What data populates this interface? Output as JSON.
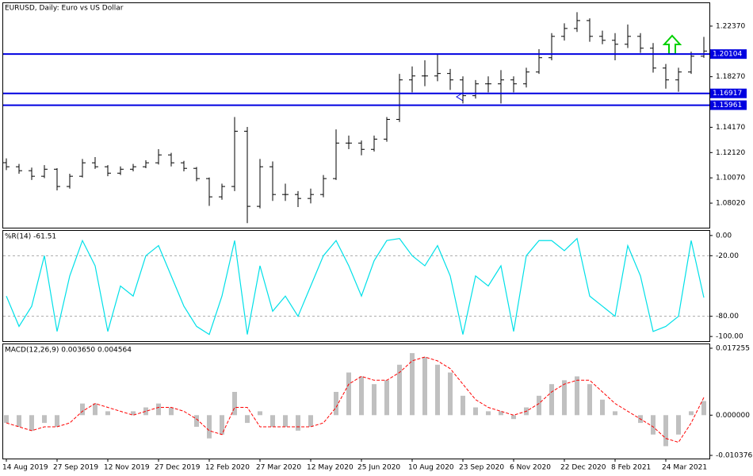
{
  "chart_data": [
    {
      "type": "ohlc",
      "title": "EURUSD, Daily:  Euro vs US Dollar",
      "categories": [
        "14 Aug 2019",
        null,
        null,
        null,
        "27 Sep 2019",
        null,
        null,
        null,
        "12 Nov 2019",
        null,
        null,
        null,
        "27 Dec 2019",
        null,
        null,
        null,
        "12 Feb 2020",
        null,
        null,
        null,
        "27 Mar 2020",
        null,
        null,
        null,
        "12 May 2020",
        null,
        null,
        null,
        "25 Jun 2020",
        null,
        null,
        null,
        "10 Aug 2020",
        null,
        null,
        null,
        "23 Sep 2020",
        null,
        null,
        null,
        "6 Nov 2020",
        null,
        null,
        null,
        "22 Dec 2020",
        null,
        null,
        null,
        "8 Feb 2021",
        null,
        null,
        null,
        "24 Mar 2021",
        null,
        null,
        null
      ],
      "open": [
        1.113,
        1.1097,
        1.1065,
        1.102,
        1.1077,
        1.0937,
        1.102,
        1.1129,
        1.1097,
        1.1045,
        1.1077,
        1.1097,
        1.1129,
        1.1193,
        1.1129,
        1.1084,
        1.1001,
        1.0853,
        1.0937,
        1.1385,
        1.0776,
        1.1097,
        1.0872,
        1.0872,
        1.084,
        1.0872,
        1.1001,
        1.1289,
        1.1289,
        1.1238,
        1.1321,
        1.1481,
        1.1801,
        1.1833,
        1.1833,
        1.1853,
        1.1801,
        1.1673,
        1.1769,
        1.1769,
        1.1801,
        1.1769,
        1.1865,
        1.1981,
        1.2154,
        1.2218,
        1.2282,
        1.2154,
        1.2122,
        1.209,
        1.2154,
        1.2058,
        1.1897,
        1.1801,
        1.1865,
        1.1993
      ],
      "high": [
        1.1165,
        1.112,
        1.109,
        1.111,
        1.1085,
        1.104,
        1.116,
        1.1175,
        1.111,
        1.11,
        1.112,
        1.115,
        1.124,
        1.121,
        1.1145,
        1.1095,
        1.101,
        1.096,
        1.15,
        1.142,
        1.116,
        1.114,
        1.096,
        1.09,
        1.092,
        1.103,
        1.14,
        1.135,
        1.131,
        1.135,
        1.15,
        1.185,
        1.191,
        1.196,
        1.201,
        1.189,
        1.183,
        1.18,
        1.183,
        1.188,
        1.183,
        1.19,
        1.205,
        1.218,
        1.226,
        1.235,
        1.23,
        1.22,
        1.218,
        1.225,
        1.218,
        1.21,
        1.193,
        1.19,
        1.203,
        1.215
      ],
      "low": [
        1.107,
        1.104,
        1.099,
        1.1005,
        1.0905,
        1.092,
        1.101,
        1.108,
        1.102,
        1.103,
        1.106,
        1.1085,
        1.1115,
        1.11,
        1.106,
        1.098,
        1.078,
        1.083,
        1.09,
        1.064,
        1.076,
        1.082,
        1.082,
        1.077,
        1.08,
        1.085,
        1.099,
        1.124,
        1.119,
        1.122,
        1.13,
        1.146,
        1.17,
        1.175,
        1.179,
        1.172,
        1.161,
        1.165,
        1.17,
        1.161,
        1.17,
        1.174,
        1.185,
        1.196,
        1.212,
        1.219,
        1.211,
        1.209,
        1.196,
        1.206,
        1.202,
        1.186,
        1.173,
        1.1705,
        1.185,
        1.198
      ],
      "close": [
        1.1097,
        1.1065,
        1.102,
        1.1077,
        1.0937,
        1.102,
        1.1129,
        1.1097,
        1.1045,
        1.1077,
        1.1097,
        1.1129,
        1.1193,
        1.1129,
        1.1084,
        1.1001,
        1.0853,
        1.0937,
        1.1385,
        1.0776,
        1.1097,
        1.0872,
        1.0872,
        1.084,
        1.0872,
        1.1001,
        1.1289,
        1.1289,
        1.1238,
        1.1321,
        1.1481,
        1.1801,
        1.1833,
        1.1833,
        1.1853,
        1.1801,
        1.1673,
        1.1769,
        1.1769,
        1.1801,
        1.1769,
        1.1865,
        1.1981,
        1.2154,
        1.2218,
        1.2282,
        1.2154,
        1.2122,
        1.209,
        1.2154,
        1.2058,
        1.1897,
        1.1801,
        1.1865,
        1.1993,
        1.2035
      ],
      "color": "#000000",
      "ylim": [
        1.0603,
        1.2423
      ],
      "yticks": [
        {
          "value": 1.0802,
          "label": "1.08020"
        },
        {
          "value": 1.1007,
          "label": "1.10070"
        },
        {
          "value": 1.1212,
          "label": "1.12120"
        },
        {
          "value": 1.1417,
          "label": "1.14170"
        },
        {
          "value": 1.1827,
          "label": "1.18270"
        },
        {
          "value": 1.2237,
          "label": "1.22370"
        }
      ],
      "hlines": [
        1.20104,
        1.16917,
        1.15961
      ],
      "hline_color": "#0000e0"
    },
    {
      "type": "line",
      "title": "%R(14) -61.51",
      "values": [
        -60,
        -90,
        -70,
        -20,
        -95,
        -40,
        -5,
        -30,
        -95,
        -50,
        -60,
        -20,
        -10,
        -40,
        -70,
        -90,
        -98,
        -60,
        -5,
        -98,
        -30,
        -75,
        -60,
        -80,
        -50,
        -20,
        -5,
        -30,
        -60,
        -25,
        -5,
        -3,
        -20,
        -30,
        -10,
        -40,
        -98,
        -40,
        -50,
        -30,
        -95,
        -20,
        -5,
        -5,
        -15,
        -3,
        -60,
        -70,
        -80,
        -10,
        -40,
        -95,
        -90,
        -80,
        -5,
        -61.51
      ],
      "color": "#00e0e8",
      "ylim": [
        -104.6,
        4.6
      ],
      "yticks": [
        {
          "value": 0,
          "label": "0.00"
        },
        {
          "value": -20,
          "label": "-20.00"
        },
        {
          "value": -80,
          "label": "-80.00"
        },
        {
          "value": -100,
          "label": "-100.00"
        }
      ],
      "levels": [
        -20,
        -80
      ]
    },
    {
      "type": "macd",
      "title": "MACD(12,26,9) 0.003650 0.004564",
      "values": [
        -0.002,
        -0.003,
        -0.004,
        -0.002,
        -0.003,
        0.0,
        0.003,
        0.003,
        0.001,
        0.0,
        0.001,
        0.002,
        0.003,
        0.002,
        0.0,
        -0.003,
        -0.006,
        -0.005,
        0.006,
        -0.002,
        0.001,
        -0.003,
        -0.003,
        -0.004,
        -0.003,
        0.0,
        0.006,
        0.011,
        0.01,
        0.008,
        0.009,
        0.013,
        0.016,
        0.015,
        0.013,
        0.011,
        0.005,
        0.002,
        0.001,
        0.001,
        -0.001,
        0.002,
        0.005,
        0.008,
        0.009,
        0.01,
        0.008,
        0.004,
        0.001,
        0.0,
        -0.002,
        -0.005,
        -0.008,
        -0.005,
        0.001,
        0.00365
      ],
      "signal_values": [
        -0.002,
        -0.003,
        -0.004,
        -0.003,
        -0.003,
        -0.002,
        0.001,
        0.003,
        0.002,
        0.001,
        0.0,
        0.001,
        0.002,
        0.002,
        0.001,
        -0.001,
        -0.004,
        -0.005,
        0.002,
        0.002,
        -0.003,
        -0.003,
        -0.003,
        -0.003,
        -0.003,
        -0.002,
        0.002,
        0.008,
        0.01,
        0.009,
        0.009,
        0.011,
        0.014,
        0.015,
        0.014,
        0.012,
        0.008,
        0.004,
        0.002,
        0.001,
        0.0,
        0.001,
        0.003,
        0.006,
        0.008,
        0.009,
        0.009,
        0.006,
        0.003,
        0.001,
        -0.001,
        -0.003,
        -0.006,
        -0.007,
        -0.002,
        0.004564
      ],
      "color": "#c0c0c0",
      "signal_color": "#ff0000",
      "ylim": [
        -0.01119,
        0.01827
      ],
      "yticks": [
        {
          "value": 0.017255,
          "label": "0.017255"
        },
        {
          "value": 0,
          "label": "0.000000"
        },
        {
          "value": -0.010376,
          "label": "-0.010376"
        }
      ]
    }
  ]
}
